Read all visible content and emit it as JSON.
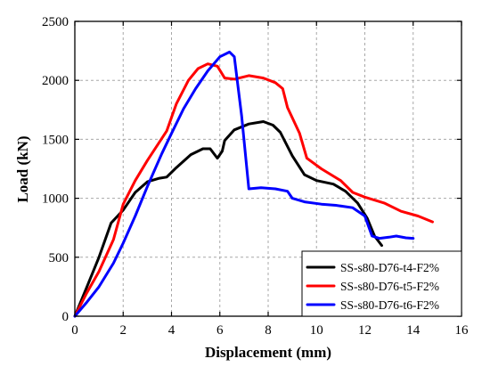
{
  "chart_data": {
    "type": "line",
    "xlabel": "Displacement (mm)",
    "ylabel": "Load (kN)",
    "xlim": [
      0,
      16
    ],
    "ylim": [
      0,
      2500
    ],
    "xticks": [
      0,
      2,
      4,
      6,
      8,
      10,
      12,
      14,
      16
    ],
    "yticks": [
      0,
      500,
      1000,
      1500,
      2000,
      2500
    ],
    "xtick_labels": [
      "0",
      "2",
      "4",
      "6",
      "8",
      "10",
      "12",
      "14",
      "16"
    ],
    "ytick_labels": [
      "0",
      "500",
      "1000",
      "1500",
      "2000",
      "2500"
    ],
    "grid": true,
    "legend_position": "bottom-right",
    "series": [
      {
        "name": "SS-s80-D76-t4-F2%",
        "color": "#000000",
        "points": [
          [
            0,
            0
          ],
          [
            0.5,
            250
          ],
          [
            1.0,
            500
          ],
          [
            1.5,
            790
          ],
          [
            2.0,
            900
          ],
          [
            2.5,
            1050
          ],
          [
            3.0,
            1140
          ],
          [
            3.5,
            1170
          ],
          [
            3.8,
            1180
          ],
          [
            4.2,
            1260
          ],
          [
            4.8,
            1370
          ],
          [
            5.3,
            1420
          ],
          [
            5.6,
            1420
          ],
          [
            5.9,
            1340
          ],
          [
            6.1,
            1400
          ],
          [
            6.2,
            1490
          ],
          [
            6.6,
            1580
          ],
          [
            7.2,
            1630
          ],
          [
            7.8,
            1650
          ],
          [
            8.2,
            1620
          ],
          [
            8.5,
            1560
          ],
          [
            9.0,
            1360
          ],
          [
            9.5,
            1200
          ],
          [
            10.0,
            1150
          ],
          [
            10.7,
            1120
          ],
          [
            11.2,
            1060
          ],
          [
            11.7,
            960
          ],
          [
            12.1,
            830
          ],
          [
            12.4,
            680
          ],
          [
            12.7,
            600
          ]
        ]
      },
      {
        "name": "SS-s80-D76-t5-F2%",
        "color": "#ff0000",
        "points": [
          [
            0,
            0
          ],
          [
            0.5,
            200
          ],
          [
            1.0,
            380
          ],
          [
            1.6,
            650
          ],
          [
            2.0,
            950
          ],
          [
            2.5,
            1150
          ],
          [
            3.0,
            1320
          ],
          [
            3.8,
            1570
          ],
          [
            4.2,
            1800
          ],
          [
            4.7,
            2000
          ],
          [
            5.1,
            2100
          ],
          [
            5.5,
            2140
          ],
          [
            5.9,
            2120
          ],
          [
            6.2,
            2020
          ],
          [
            6.6,
            2010
          ],
          [
            7.2,
            2040
          ],
          [
            7.8,
            2020
          ],
          [
            8.3,
            1980
          ],
          [
            8.6,
            1930
          ],
          [
            8.8,
            1770
          ],
          [
            9.3,
            1550
          ],
          [
            9.6,
            1340
          ],
          [
            10.2,
            1250
          ],
          [
            11.0,
            1150
          ],
          [
            11.5,
            1050
          ],
          [
            12.0,
            1010
          ],
          [
            12.8,
            960
          ],
          [
            13.5,
            890
          ],
          [
            14.2,
            850
          ],
          [
            14.8,
            800
          ]
        ]
      },
      {
        "name": "SS-s80-D76-t6-F2%",
        "color": "#0000ff",
        "points": [
          [
            0,
            0
          ],
          [
            0.5,
            120
          ],
          [
            1.0,
            250
          ],
          [
            1.6,
            450
          ],
          [
            2.0,
            620
          ],
          [
            2.5,
            850
          ],
          [
            3.0,
            1100
          ],
          [
            3.6,
            1380
          ],
          [
            4.0,
            1550
          ],
          [
            4.5,
            1760
          ],
          [
            5.0,
            1930
          ],
          [
            5.5,
            2080
          ],
          [
            6.0,
            2200
          ],
          [
            6.4,
            2240
          ],
          [
            6.6,
            2200
          ],
          [
            6.9,
            1700
          ],
          [
            7.2,
            1080
          ],
          [
            7.7,
            1090
          ],
          [
            8.3,
            1080
          ],
          [
            8.8,
            1060
          ],
          [
            9.0,
            1000
          ],
          [
            9.5,
            970
          ],
          [
            10.2,
            950
          ],
          [
            10.8,
            940
          ],
          [
            11.5,
            920
          ],
          [
            12.0,
            850
          ],
          [
            12.3,
            680
          ],
          [
            12.6,
            660
          ],
          [
            13.0,
            670
          ],
          [
            13.3,
            680
          ],
          [
            13.7,
            665
          ],
          [
            14.0,
            660
          ]
        ]
      }
    ]
  }
}
